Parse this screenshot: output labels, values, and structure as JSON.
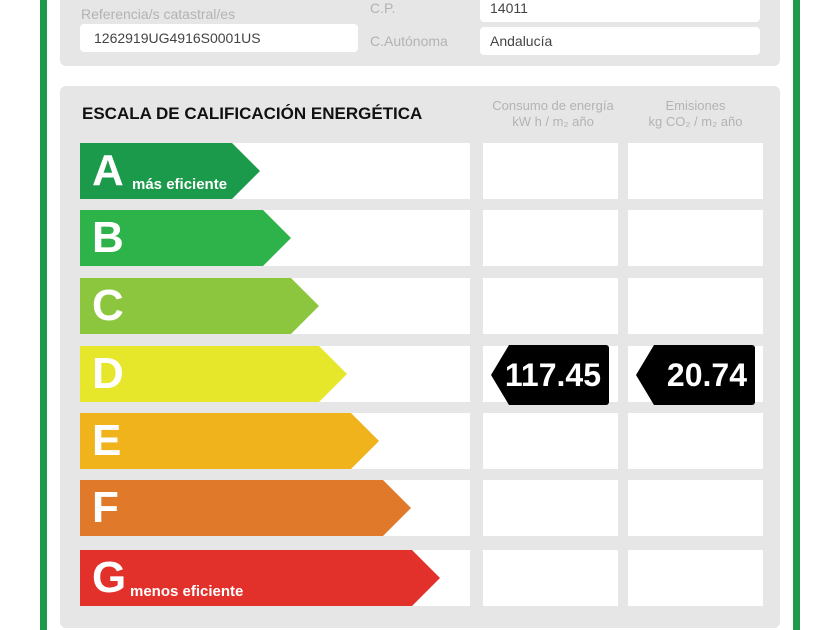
{
  "info": {
    "ref_label": "Referencia/s catastral/es",
    "ref_value": "1262919UG4916S0001US",
    "cp_label": "C.P.",
    "cp_value": "14011",
    "ca_label": "C.Autónoma",
    "ca_value": "Andalucía"
  },
  "scale": {
    "title": "ESCALA DE CALIFICACIÓN ENERGÉTICA",
    "col_energy": {
      "line1": "Consumo de energía",
      "line2": "kW h / m₂ año"
    },
    "col_emissions": {
      "line1": "Emisiones",
      "line2": "kg CO₂ / m₂ año"
    },
    "grades": [
      {
        "letter": "A",
        "sub": "más eficiente",
        "color": "#1a9a4a"
      },
      {
        "letter": "B",
        "sub": "",
        "color": "#2db34a"
      },
      {
        "letter": "C",
        "sub": "",
        "color": "#8cc63f"
      },
      {
        "letter": "D",
        "sub": "",
        "color": "#e6e62a"
      },
      {
        "letter": "E",
        "sub": "",
        "color": "#f0b31c"
      },
      {
        "letter": "F",
        "sub": "",
        "color": "#e07a2a"
      },
      {
        "letter": "G",
        "sub": "menos eficiente",
        "color": "#e2302b"
      }
    ],
    "rating": {
      "grade": "D",
      "energy": "117.45",
      "emissions": "20.74"
    }
  },
  "colors": {
    "border": "#1f9a4c",
    "panel": "#e6e6e6"
  }
}
